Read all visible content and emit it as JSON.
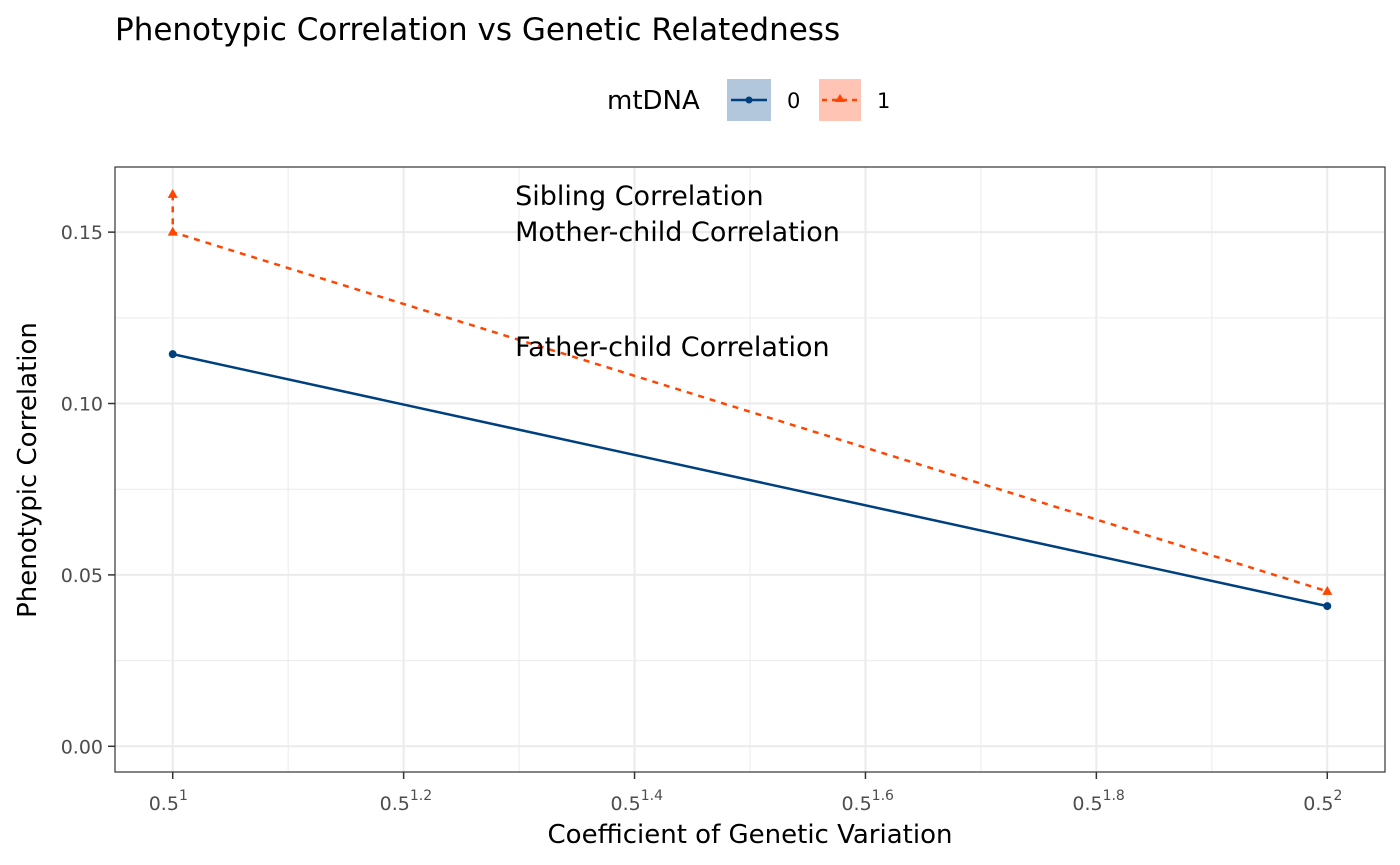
{
  "chart_data": {
    "type": "line",
    "title": "Phenotypic Correlation vs Genetic Relatedness",
    "xlabel": "Coefficient of Genetic Variation",
    "ylabel": "Phenotypic Correlation",
    "x_scale": "exponent of 0.5",
    "x_ticks": [
      {
        "base": "0.5",
        "exp": "1",
        "value": 1.0
      },
      {
        "base": "0.5",
        "exp": "1.2",
        "value": 1.2
      },
      {
        "base": "0.5",
        "exp": "1.4",
        "value": 1.4
      },
      {
        "base": "0.5",
        "exp": "1.6",
        "value": 1.6
      },
      {
        "base": "0.5",
        "exp": "1.8",
        "value": 1.8
      },
      {
        "base": "0.5",
        "exp": "2",
        "value": 2.0
      }
    ],
    "y_ticks": [
      "0.00",
      "0.05",
      "0.10",
      "0.15"
    ],
    "xlim": [
      0.95,
      2.05
    ],
    "ylim": [
      -0.0075,
      0.169
    ],
    "grid": true,
    "legend": {
      "title": "mtDNA",
      "placement": "top",
      "entries": [
        {
          "label": "0",
          "color": "#00407f",
          "fill": "#b3c7dc",
          "linetype": "solid",
          "marker": "circle"
        },
        {
          "label": "1",
          "color": "#ff4500",
          "fill": "#ffc4b4",
          "linetype": "dashed",
          "marker": "triangle"
        }
      ]
    },
    "series": [
      {
        "name": "0",
        "color": "#00407f",
        "points": [
          {
            "x": 1.0,
            "y": 0.1144
          },
          {
            "x": 2.0,
            "y": 0.0409
          }
        ]
      },
      {
        "name": "1",
        "color": "#ff4500",
        "points": [
          {
            "x": 1.0,
            "y": 0.161
          },
          {
            "x": 1.0,
            "y": 0.15
          },
          {
            "x": 2.0,
            "y": 0.0452
          }
        ]
      }
    ],
    "annotations": [
      {
        "text": "Sibling Correlation",
        "x": 1.3,
        "y": 0.1605
      },
      {
        "text": "Mother-child Correlation",
        "x": 1.3,
        "y": 0.15
      },
      {
        "text": "Father-child Correlation",
        "x": 1.3,
        "y": 0.1165
      }
    ]
  }
}
